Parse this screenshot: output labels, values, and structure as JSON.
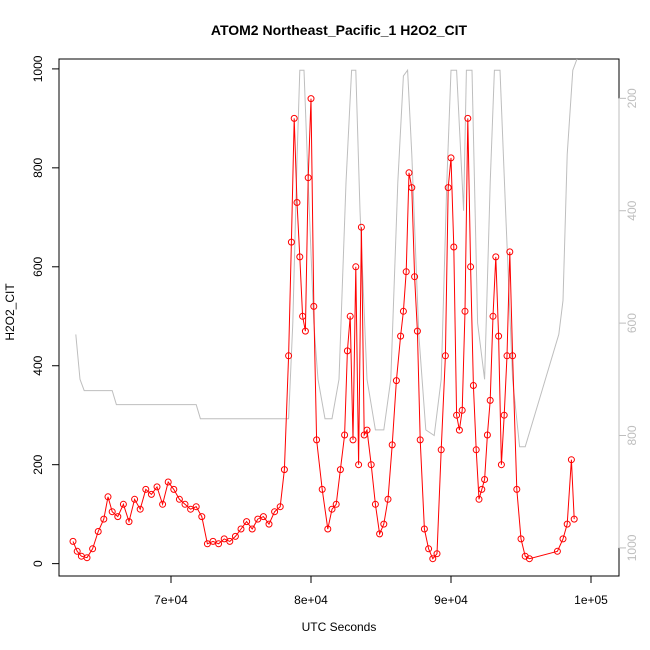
{
  "chart_data": {
    "type": "scatter",
    "title": "ATOM2 Northeast_Pacific_1 H2O2_CIT",
    "xlabel": "UTC Seconds",
    "ylabel": "H2O2_CIT",
    "xlim": [
      62000,
      102000
    ],
    "ylim": [
      -25,
      1020
    ],
    "x_ticks": [
      70000,
      80000,
      90000,
      100000
    ],
    "x_tick_labels": [
      "7e+04",
      "8e+04",
      "9e+04",
      "1e+05"
    ],
    "y_ticks": [
      0,
      200,
      400,
      600,
      800,
      1000
    ],
    "y_tick_labels": [
      "0",
      "200",
      "400",
      "600",
      "800",
      "1000"
    ],
    "right_axis": {
      "lim": [
        1050,
        130
      ],
      "ticks": [
        200,
        400,
        600,
        800,
        1000
      ],
      "tick_labels": [
        "200",
        "400",
        "600",
        "800",
        "1000"
      ],
      "color": "#bebebe"
    },
    "grid": false,
    "colors": {
      "series": "#ff0000",
      "secondary": "#bebebe"
    },
    "series": [
      {
        "marker": "open-circle",
        "line": true,
        "x": [
          63000,
          63300,
          63600,
          64000,
          64400,
          64800,
          65200,
          65500,
          65800,
          66200,
          66600,
          67000,
          67400,
          67800,
          68200,
          68600,
          69000,
          69400,
          69800,
          70200,
          70600,
          71000,
          71400,
          71800,
          72200,
          72600,
          73000,
          73400,
          73800,
          74200,
          74600,
          75000,
          75400,
          75800,
          76200,
          76600,
          77000,
          77400,
          77800,
          78100,
          78400,
          78600,
          78800,
          79000,
          79200,
          79400,
          79600,
          79800,
          80000,
          80200,
          80400,
          80800,
          81200,
          81500,
          81800,
          82100,
          82400,
          82600,
          82800,
          83000,
          83200,
          83400,
          83600,
          83800,
          84000,
          84300,
          84600,
          84900,
          85200,
          85500,
          85800,
          86100,
          86400,
          86600,
          86800,
          87000,
          87200,
          87400,
          87600,
          87800,
          88100,
          88400,
          88700,
          89000,
          89300,
          89600,
          89800,
          90000,
          90200,
          90400,
          90600,
          90800,
          91000,
          91200,
          91400,
          91600,
          91800,
          92000,
          92200,
          92400,
          92600,
          92800,
          93000,
          93200,
          93400,
          93600,
          93800,
          94000,
          94200,
          94400,
          94700,
          95000,
          95300,
          95600,
          97600,
          98000,
          98300,
          98600,
          98800
        ],
        "y": [
          45,
          25,
          15,
          12,
          30,
          65,
          90,
          135,
          105,
          95,
          120,
          85,
          130,
          110,
          150,
          140,
          155,
          120,
          165,
          150,
          130,
          120,
          110,
          115,
          95,
          40,
          45,
          40,
          50,
          45,
          55,
          70,
          85,
          70,
          90,
          95,
          80,
          105,
          115,
          190,
          420,
          650,
          900,
          730,
          620,
          500,
          470,
          780,
          940,
          520,
          250,
          150,
          70,
          110,
          120,
          190,
          260,
          430,
          500,
          250,
          600,
          200,
          680,
          260,
          270,
          200,
          120,
          60,
          80,
          130,
          240,
          370,
          460,
          510,
          590,
          790,
          760,
          580,
          470,
          250,
          70,
          30,
          10,
          20,
          230,
          420,
          760,
          820,
          640,
          300,
          270,
          310,
          510,
          900,
          600,
          360,
          230,
          130,
          150,
          170,
          260,
          330,
          500,
          620,
          460,
          200,
          300,
          420,
          630,
          420,
          150,
          50,
          15,
          10,
          25,
          50,
          80,
          210,
          90
        ]
      }
    ]
  }
}
